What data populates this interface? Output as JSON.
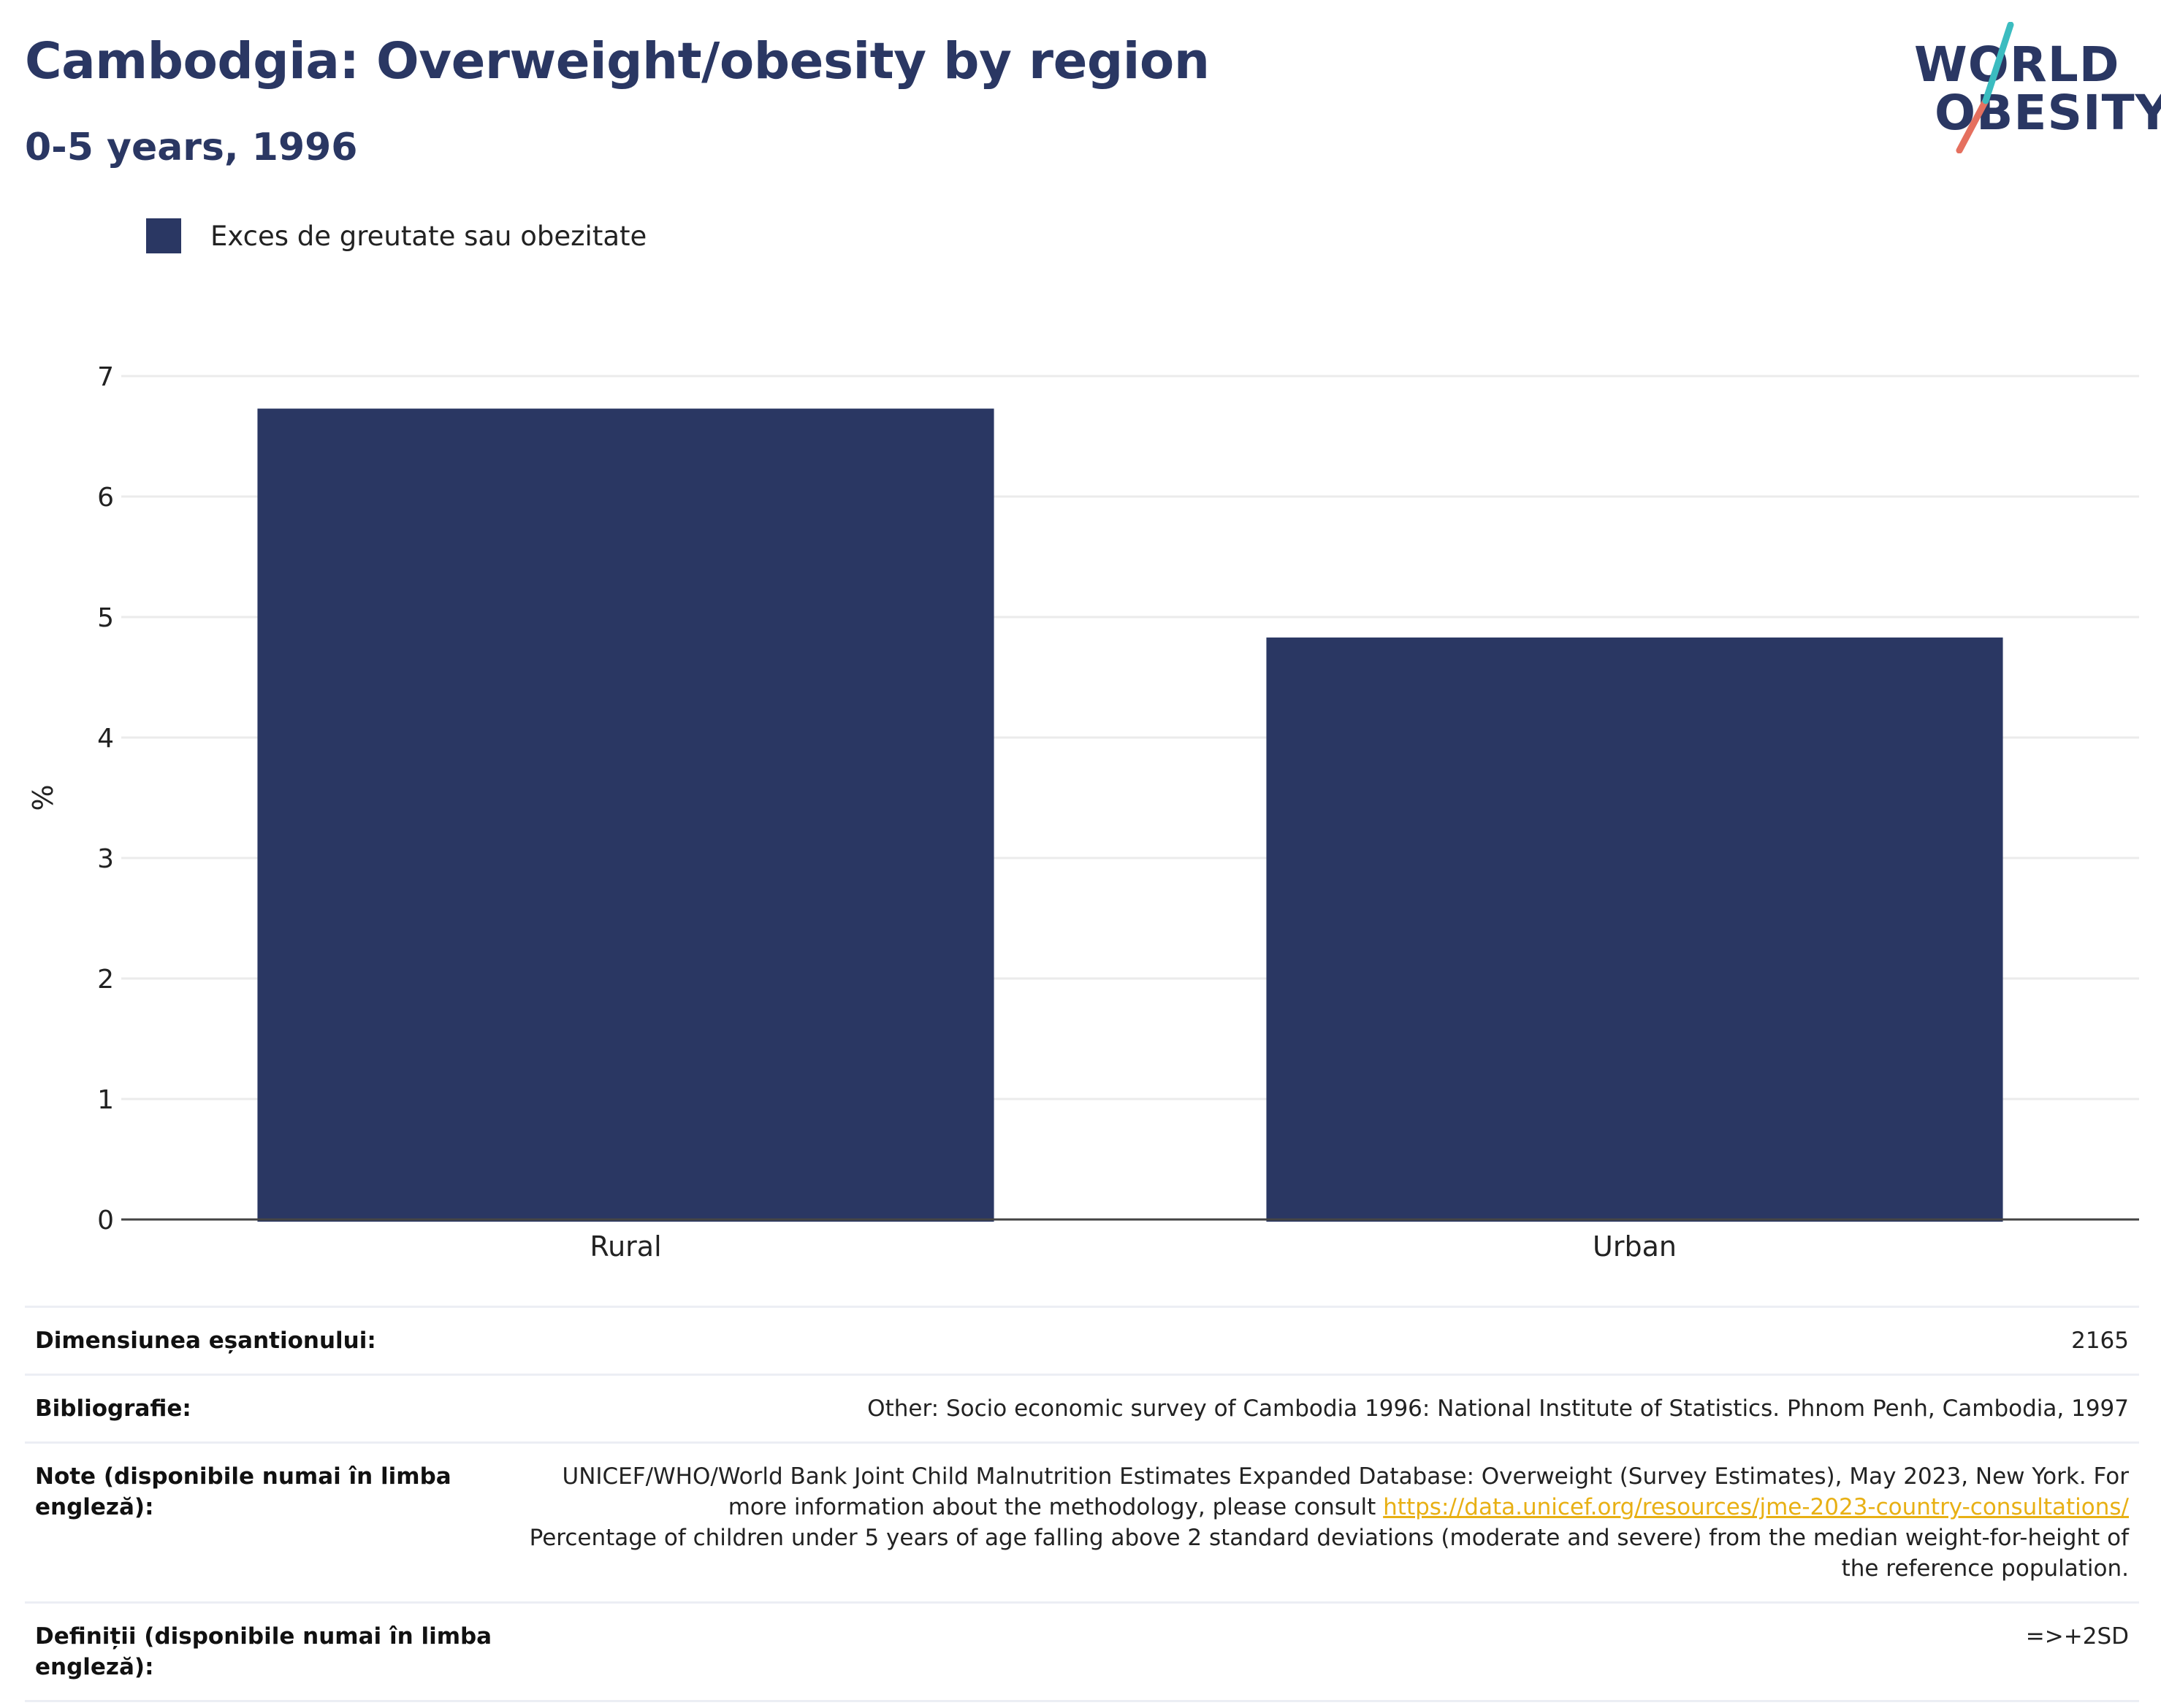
{
  "header": {
    "title": "Cambodgia: Overweight/obesity by region",
    "subtitle": "0-5 years, 1996"
  },
  "logo": {
    "line1": "WORLD",
    "line2": "OBESITY",
    "colors": {
      "text": "#2a3763",
      "slash_teal": "#3bbcc0",
      "slash_coral": "#e5705f"
    }
  },
  "legend": {
    "label": "Exces de greutate sau obezitate",
    "color": "#2a3763"
  },
  "chart_data": {
    "type": "bar",
    "categories": [
      "Rural",
      "Urban"
    ],
    "series": [
      {
        "name": "Exces de greutate sau obezitate",
        "values": [
          6.73,
          4.83
        ],
        "color": "#2a3763"
      }
    ],
    "ylabel": "%",
    "xlabel": "",
    "ylim": [
      0,
      7
    ],
    "yticks": [
      "0",
      "1",
      "2",
      "3",
      "4",
      "5",
      "6",
      "7"
    ],
    "grid": true,
    "legend_position": "top-left"
  },
  "info": {
    "sample_size_label": "Dimensiunea eșantionului:",
    "sample_size_value": "2165",
    "bibliography_label": "Bibliografie:",
    "bibliography_value": "Other: Socio economic survey of Cambodia 1996: National Institute of Statistics. Phnom Penh, Cambodia, 1997",
    "notes_label": "Note (disponibile numai în limba engleză):",
    "notes_text_1": "UNICEF/WHO/World Bank Joint Child Malnutrition Estimates Expanded Database: Overweight (Survey Estimates), May 2023, New York. For more information about the methodology, please consult",
    "notes_link": "https://data.unicef.org/resources/jme-2023-country-consultations/",
    "notes_text_2": "Percentage of children under 5 years of age falling above 2 standard deviations (moderate and severe) from the median weight-for-height of the reference population.",
    "definitions_label": "Definiții (disponibile numai în limba engleză):",
    "definitions_value": "=>+2SD"
  }
}
